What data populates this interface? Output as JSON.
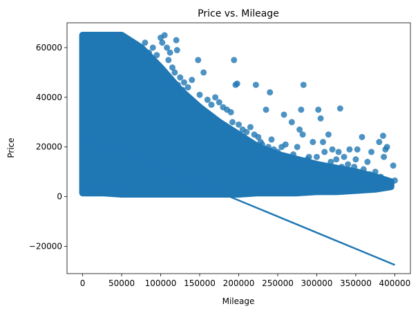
{
  "chart_data": {
    "type": "scatter",
    "title": "Price vs. Mileage",
    "xlabel": "Mileage",
    "ylabel": "Price",
    "xlim": [
      -20000,
      420000
    ],
    "ylim": [
      -31000,
      70000
    ],
    "xticks": [
      0,
      50000,
      100000,
      150000,
      200000,
      250000,
      300000,
      350000,
      400000
    ],
    "xtick_labels": [
      "0",
      "50000",
      "100000",
      "150000",
      "200000",
      "250000",
      "300000",
      "350000",
      "400000"
    ],
    "yticks": [
      -20000,
      0,
      20000,
      40000,
      60000
    ],
    "ytick_labels": [
      "−20000",
      "0",
      "20000",
      "40000",
      "60000"
    ],
    "grid": false,
    "legend": "none",
    "point_color": "#1f77b4",
    "point_alpha": 0.8,
    "regression_line": {
      "x": [
        0,
        400000
      ],
      "y": [
        24500,
        -27500
      ],
      "color": "#1f77b4"
    },
    "dense_region": {
      "description_mileage_price_envelope": [
        [
          0,
          1500,
          65000
        ],
        [
          25000,
          1500,
          65000
        ],
        [
          50000,
          1000,
          65000
        ],
        [
          75000,
          1000,
          60000
        ],
        [
          100000,
          1000,
          52000
        ],
        [
          125000,
          1000,
          43000
        ],
        [
          150000,
          1000,
          36000
        ],
        [
          175000,
          1000,
          30000
        ],
        [
          200000,
          1000,
          25000
        ],
        [
          225000,
          1500,
          20000
        ],
        [
          250000,
          1500,
          17000
        ],
        [
          275000,
          1500,
          15000
        ],
        [
          300000,
          2000,
          13000
        ],
        [
          325000,
          2000,
          11500
        ],
        [
          350000,
          2500,
          10000
        ],
        [
          375000,
          3000,
          8000
        ],
        [
          395000,
          4000,
          6000
        ]
      ]
    },
    "points": [
      [
        80000,
        62000
      ],
      [
        85000,
        58000
      ],
      [
        90000,
        60000
      ],
      [
        95000,
        57000
      ],
      [
        100000,
        64000
      ],
      [
        102000,
        62000
      ],
      [
        105000,
        65000
      ],
      [
        108000,
        60000
      ],
      [
        110000,
        55000
      ],
      [
        112000,
        58000
      ],
      [
        115000,
        52000
      ],
      [
        118000,
        50000
      ],
      [
        120000,
        63000
      ],
      [
        121000,
        59000
      ],
      [
        122000,
        45000
      ],
      [
        125000,
        48000
      ],
      [
        128000,
        43000
      ],
      [
        130000,
        46000
      ],
      [
        135000,
        44000
      ],
      [
        140000,
        47000
      ],
      [
        148000,
        55000
      ],
      [
        150000,
        41000
      ],
      [
        155000,
        50000
      ],
      [
        160000,
        39000
      ],
      [
        165000,
        37000
      ],
      [
        170000,
        40000
      ],
      [
        175000,
        38000
      ],
      [
        180000,
        36000
      ],
      [
        185000,
        35000
      ],
      [
        190000,
        34000
      ],
      [
        192000,
        30000
      ],
      [
        194000,
        55000
      ],
      [
        196000,
        45000
      ],
      [
        198000,
        45500
      ],
      [
        200000,
        29000
      ],
      [
        205000,
        27000
      ],
      [
        210000,
        26000
      ],
      [
        215000,
        28000
      ],
      [
        220000,
        25000
      ],
      [
        222000,
        45000
      ],
      [
        225000,
        24000
      ],
      [
        228000,
        22000
      ],
      [
        230000,
        21000
      ],
      [
        235000,
        35000
      ],
      [
        238000,
        20000
      ],
      [
        240000,
        42000
      ],
      [
        242000,
        23000
      ],
      [
        245000,
        19000
      ],
      [
        250000,
        18000
      ],
      [
        255000,
        20000
      ],
      [
        258000,
        33000
      ],
      [
        260000,
        21000
      ],
      [
        262000,
        16000
      ],
      [
        265000,
        15000
      ],
      [
        268000,
        30000
      ],
      [
        270000,
        17000
      ],
      [
        275000,
        20000
      ],
      [
        278000,
        27000
      ],
      [
        280000,
        35000
      ],
      [
        282000,
        25000
      ],
      [
        283000,
        45000
      ],
      [
        285000,
        14000
      ],
      [
        288000,
        15000
      ],
      [
        290000,
        16000
      ],
      [
        295000,
        22000
      ],
      [
        298000,
        13000
      ],
      [
        300000,
        16000
      ],
      [
        302000,
        35000
      ],
      [
        305000,
        31500
      ],
      [
        308000,
        22000
      ],
      [
        310000,
        18000
      ],
      [
        312000,
        12000
      ],
      [
        315000,
        25000
      ],
      [
        318000,
        14000
      ],
      [
        320000,
        19000
      ],
      [
        322000,
        11000
      ],
      [
        325000,
        15000
      ],
      [
        328000,
        18000
      ],
      [
        330000,
        35500
      ],
      [
        332000,
        12000
      ],
      [
        335000,
        16000
      ],
      [
        338000,
        10000
      ],
      [
        340000,
        13000
      ],
      [
        342000,
        19000
      ],
      [
        345000,
        9000
      ],
      [
        348000,
        12000
      ],
      [
        350000,
        15000
      ],
      [
        352000,
        19000
      ],
      [
        355000,
        8000
      ],
      [
        358000,
        24000
      ],
      [
        360000,
        11000
      ],
      [
        362000,
        7000
      ],
      [
        365000,
        14000
      ],
      [
        368000,
        9000
      ],
      [
        370000,
        18000
      ],
      [
        372000,
        6000
      ],
      [
        375000,
        10000
      ],
      [
        378000,
        4000
      ],
      [
        380000,
        22000
      ],
      [
        382000,
        8000
      ],
      [
        385000,
        24500
      ],
      [
        386000,
        16000
      ],
      [
        388000,
        19000
      ],
      [
        390000,
        20000
      ],
      [
        392000,
        5000
      ],
      [
        395000,
        6000
      ],
      [
        398000,
        12500
      ],
      [
        400000,
        6500
      ]
    ]
  }
}
